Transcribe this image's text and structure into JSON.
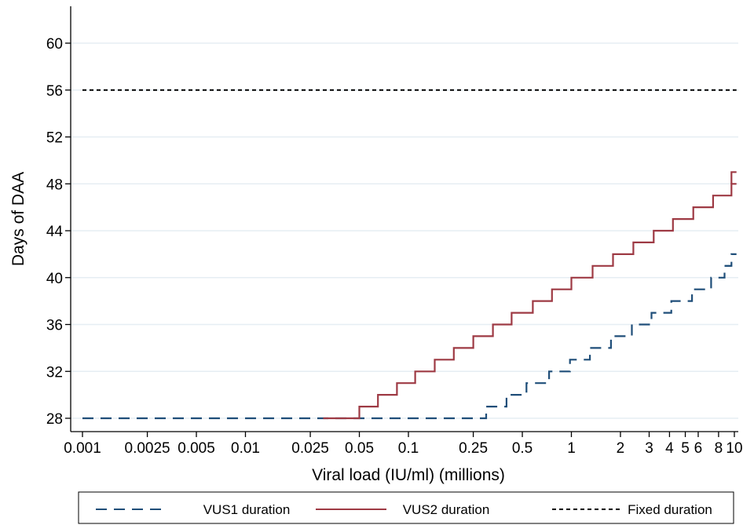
{
  "chart_data": {
    "type": "line",
    "xlabel": "Viral load (IU/ml) (millions)",
    "ylabel": "Days of DAA",
    "x_scale": "log",
    "xlim": [
      0.001,
      10
    ],
    "ylim": [
      27.5,
      62
    ],
    "x_ticks": [
      0.001,
      0.0025,
      0.005,
      0.01,
      0.025,
      0.05,
      0.1,
      0.25,
      0.5,
      1,
      2,
      3,
      4,
      5,
      6,
      8,
      10
    ],
    "x_tick_labels": [
      "0.001",
      "0.0025",
      "0.005",
      "0.01",
      "0.025",
      "0.05",
      "0.1",
      "0.25",
      "0.5",
      "1",
      "2",
      "3",
      "4",
      "5",
      "6",
      "8",
      "10"
    ],
    "y_ticks": [
      28,
      32,
      36,
      40,
      44,
      48,
      52,
      56,
      60
    ],
    "y_tick_labels": [
      "28",
      "32",
      "36",
      "40",
      "44",
      "48",
      "52",
      "56",
      "60"
    ],
    "grid": "horizontal",
    "legend_position": "bottom",
    "series": [
      {
        "name": "VUS1 duration",
        "style": "long-dash",
        "color": "#1f4e79",
        "x": [
          0.001,
          0.3,
          0.3,
          0.4,
          0.4,
          0.53,
          0.53,
          0.73,
          0.73,
          0.98,
          0.98,
          1.3,
          1.3,
          1.75,
          1.75,
          2.35,
          2.35,
          3.1,
          3.1,
          4.1,
          4.1,
          5.5,
          5.5,
          7.2,
          7.2,
          8.7,
          8.7,
          9.6
        ],
        "y": [
          28,
          28,
          29,
          29,
          30,
          30,
          31,
          31,
          32,
          32,
          33,
          33,
          34,
          34,
          35,
          35,
          36,
          36,
          37,
          37,
          38,
          38,
          39,
          39,
          40,
          40,
          41,
          41
        ]
      },
      {
        "name": "VUS2 duration",
        "style": "solid",
        "color": "#9e3a44",
        "x": [
          0.03,
          0.05,
          0.05,
          0.065,
          0.065,
          0.085,
          0.085,
          0.11,
          0.11,
          0.145,
          0.145,
          0.19,
          0.19,
          0.25,
          0.25,
          0.33,
          0.33,
          0.43,
          0.43,
          0.58,
          0.58,
          0.76,
          0.76,
          1.0,
          1.0,
          1.35,
          1.35,
          1.8,
          1.8,
          2.4,
          2.4,
          3.2,
          3.2,
          4.2,
          4.2,
          5.6,
          5.6,
          7.4,
          7.4,
          9.6,
          9.6,
          10.3
        ],
        "y": [
          28,
          28,
          29,
          29,
          30,
          30,
          31,
          31,
          32,
          32,
          33,
          33,
          34,
          34,
          35,
          35,
          36,
          36,
          37,
          37,
          38,
          38,
          39,
          39,
          40,
          40,
          41,
          41,
          42,
          42,
          43,
          43,
          44,
          44,
          45,
          45,
          46,
          46,
          47,
          47,
          48,
          48
        ]
      },
      {
        "name": "Fixed duration",
        "style": "short-dash",
        "color": "#000000",
        "x": [
          0.001,
          10.3
        ],
        "y": [
          56,
          56
        ]
      }
    ],
    "vus1_tail": {
      "x": [
        8.7,
        9.6,
        9.6,
        10.3
      ],
      "y": [
        41,
        41,
        42,
        42
      ]
    },
    "vus2_tail": {
      "x": [
        9.6,
        9.6,
        10.3
      ],
      "y": [
        48,
        49,
        49
      ]
    }
  }
}
